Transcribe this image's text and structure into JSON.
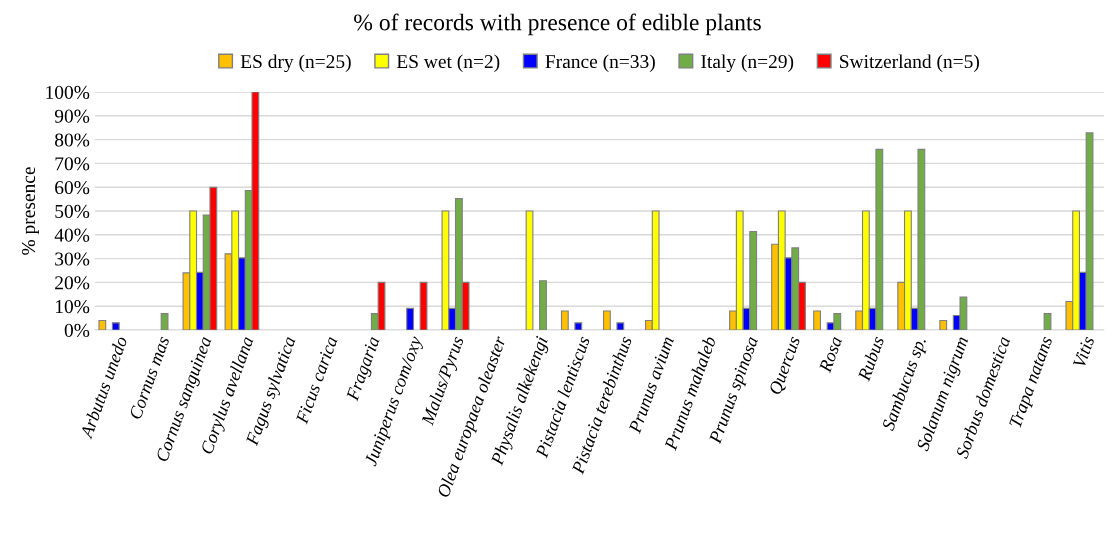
{
  "chart_data": {
    "type": "bar",
    "title": "% of records with presence of edible plants",
    "ylabel": "% presence",
    "categories": [
      "Arbutus unedo",
      "Cornus mas",
      "Cornus sanguinea",
      "Corylus avellana",
      "Fagus sylvatica",
      "Ficus carica",
      "Fragaria",
      "Juniperus com/oxy",
      "Malus/Pyrus",
      "Olea europaea oleaster",
      "Physalis alkekengi",
      "Pistacia lentiscus",
      "Pistacia terebinthus",
      "Prunus avium",
      "Prunus mahaleb",
      "Prunus spinosa",
      "Quercus",
      "Rosa",
      "Rubus",
      "Sambucus sp.",
      "Solanum nigrum",
      "Sorbus domestica",
      "Trapa natans",
      "Vitis"
    ],
    "series": [
      {
        "name": "ES dry (n=25)",
        "color": "#ffc000",
        "values": [
          4,
          0,
          24,
          32,
          0,
          0,
          0,
          0,
          0,
          0,
          0,
          8,
          8,
          4,
          0,
          8,
          36,
          8,
          8,
          20,
          4,
          0,
          0,
          12
        ]
      },
      {
        "name": "ES wet (n=2)",
        "color": "#ffff00",
        "values": [
          0,
          0,
          50,
          50,
          0,
          0,
          0,
          0,
          50,
          0,
          50,
          0,
          0,
          50,
          0,
          50,
          50,
          0,
          50,
          50,
          0,
          0,
          0,
          50
        ]
      },
      {
        "name": "France (n=33)",
        "color": "#0000ff",
        "values": [
          3,
          0,
          24.2,
          30.3,
          0,
          0,
          0,
          9.1,
          9.1,
          0,
          0,
          3,
          3,
          0,
          0,
          9.1,
          30.3,
          3,
          9.1,
          9.1,
          6.1,
          0,
          0,
          24.2
        ]
      },
      {
        "name": "Italy (n=29)",
        "color": "#70ad47",
        "values": [
          0,
          6.9,
          48.3,
          58.6,
          0,
          0,
          6.9,
          0,
          55.2,
          0,
          20.7,
          0,
          0,
          0,
          0,
          41.4,
          34.5,
          6.9,
          75.9,
          75.9,
          13.8,
          0,
          6.9,
          82.8
        ]
      },
      {
        "name": "Switzerland (n=5)",
        "color": "#ff0000",
        "values": [
          0,
          0,
          60,
          100,
          0,
          0,
          20,
          20,
          20,
          0,
          0,
          0,
          0,
          0,
          0,
          0,
          20,
          0,
          0,
          0,
          0,
          0,
          0,
          0
        ]
      }
    ],
    "ylim": [
      0,
      100
    ],
    "yticks": [
      {
        "value": 0,
        "label": "0%"
      },
      {
        "value": 10,
        "label": "10%"
      },
      {
        "value": 20,
        "label": "20%"
      },
      {
        "value": 30,
        "label": "30%"
      },
      {
        "value": 40,
        "label": "40%"
      },
      {
        "value": 50,
        "label": "50%"
      },
      {
        "value": 60,
        "label": "60%"
      },
      {
        "value": 70,
        "label": "70%"
      },
      {
        "value": 80,
        "label": "80%"
      },
      {
        "value": 90,
        "label": "90%"
      },
      {
        "value": 100,
        "label": "100%"
      }
    ],
    "grid": "y",
    "legend": "top"
  }
}
